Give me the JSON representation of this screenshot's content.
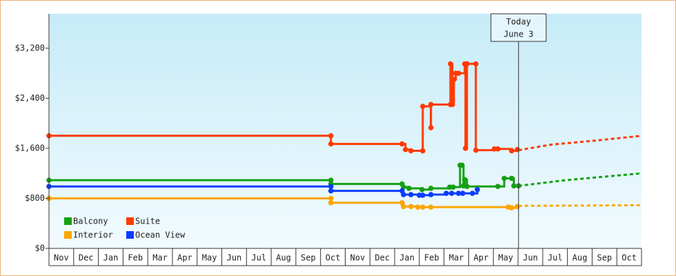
{
  "chart_data": {
    "type": "step-line",
    "categories": [
      "Nov",
      "Dec",
      "Jan",
      "Feb",
      "Mar",
      "Apr",
      "May",
      "Jun",
      "Jul",
      "Aug",
      "Sep",
      "Oct",
      "Nov",
      "Dec",
      "Jan",
      "Feb",
      "Mar",
      "Apr",
      "May",
      "Jun",
      "Jul",
      "Aug",
      "Sep",
      "Oct"
    ],
    "xlim": [
      0,
      24
    ],
    "ylim": [
      0,
      3750
    ],
    "yticks": [
      {
        "value": 0,
        "label": "$0"
      },
      {
        "value": 800,
        "label": "$800"
      },
      {
        "value": 1600,
        "label": "$1,600"
      },
      {
        "value": 2400,
        "label": "$2,400"
      },
      {
        "value": 3200,
        "label": "$3,200"
      }
    ],
    "grid": false,
    "legend": "lower left",
    "annotation": {
      "text": [
        "Today",
        "June 3"
      ],
      "x": 19.02
    },
    "series": [
      {
        "name": "Balcony",
        "color": "#14a014",
        "x": [
          0,
          11.42,
          11.42,
          14.3,
          14.36,
          14.58,
          15.11,
          15.47,
          16.23,
          16.37,
          16.65,
          16.73,
          16.79,
          16.84,
          16.93,
          18.18,
          18.44,
          18.74,
          18.83,
          19.02
        ],
        "values": [
          1090,
          1090,
          1030,
          1030,
          980,
          960,
          940,
          960,
          980,
          980,
          1330,
          1330,
          1000,
          1100,
          990,
          990,
          1120,
          1120,
          1000,
          1000
        ],
        "forecast": {
          "x": [
            19.02,
            20.92,
            24
          ],
          "values": [
            1000,
            1090,
            1200
          ]
        }
      },
      {
        "name": "Suite",
        "color": "#ff3a00",
        "x": [
          0,
          11.42,
          11.42,
          14.3,
          14.44,
          14.66,
          15.14,
          15.14,
          15.47,
          15.47,
          16.26,
          16.26,
          16.34,
          16.4,
          16.48,
          16.59,
          16.84,
          16.87,
          16.93,
          17.29,
          17.29,
          18.04,
          18.18,
          18.74,
          18.97
        ],
        "values": [
          1800,
          1800,
          1670,
          1670,
          1580,
          1560,
          1560,
          2270,
          1930,
          2300,
          2300,
          2950,
          2300,
          2700,
          2800,
          2800,
          2950,
          1600,
          2950,
          2950,
          1570,
          1590,
          1590,
          1560,
          1580
        ],
        "forecast": {
          "x": [
            19.02,
            20.36,
            22.04,
            24
          ],
          "values": [
            1570,
            1660,
            1720,
            1800
          ]
        }
      },
      {
        "name": "Interior",
        "color": "#ffa500",
        "x": [
          0,
          11.42,
          11.42,
          14.3,
          14.36,
          14.66,
          14.94,
          15.14,
          15.47,
          18.6,
          18.74,
          18.97
        ],
        "values": [
          800,
          800,
          730,
          730,
          670,
          670,
          660,
          660,
          660,
          660,
          650,
          670
        ],
        "forecast": {
          "x": [
            19.02,
            24
          ],
          "values": [
            680,
            690
          ]
        }
      },
      {
        "name": "Ocean View",
        "color": "#0a3cff",
        "x": [
          0,
          11.42,
          11.42,
          14.3,
          14.36,
          14.66,
          15.0,
          15.14,
          15.47,
          16.09,
          16.31,
          16.59,
          16.76,
          17.15,
          17.35
        ],
        "values": [
          990,
          990,
          920,
          920,
          860,
          860,
          850,
          850,
          860,
          880,
          880,
          880,
          880,
          880,
          940
        ]
      }
    ]
  }
}
